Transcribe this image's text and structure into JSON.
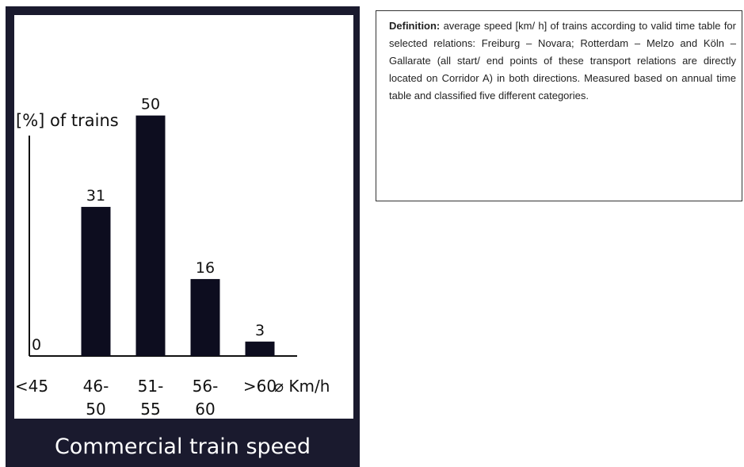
{
  "chart_data": {
    "type": "bar",
    "title": "Commercial train speed",
    "ylabel": "[%] of trains",
    "xlabel": "⌀ Km/h",
    "categories": [
      [
        "<45"
      ],
      [
        "46-",
        "50"
      ],
      [
        "51-",
        "55"
      ],
      [
        "56-",
        "60"
      ],
      [
        ">60"
      ]
    ],
    "values": [
      0,
      31,
      50,
      16,
      3
    ],
    "ylim": [
      0,
      60
    ],
    "bar_color": "#0d0d1f",
    "legend": "none",
    "grid": false
  },
  "definition": {
    "label": "Definition:",
    "text": "average speed [km/ h] of trains according to valid time table for selected relations: Freiburg – Novara; Rotterdam – Melzo and Köln – Gallarate (all start/ end points of these transport relations are directly located on Corridor A) in both directions. Measured based on annual time table and classified five different categories."
  },
  "colors": {
    "panel_background": "#1a1a2e",
    "plot_background": "#ffffff"
  }
}
